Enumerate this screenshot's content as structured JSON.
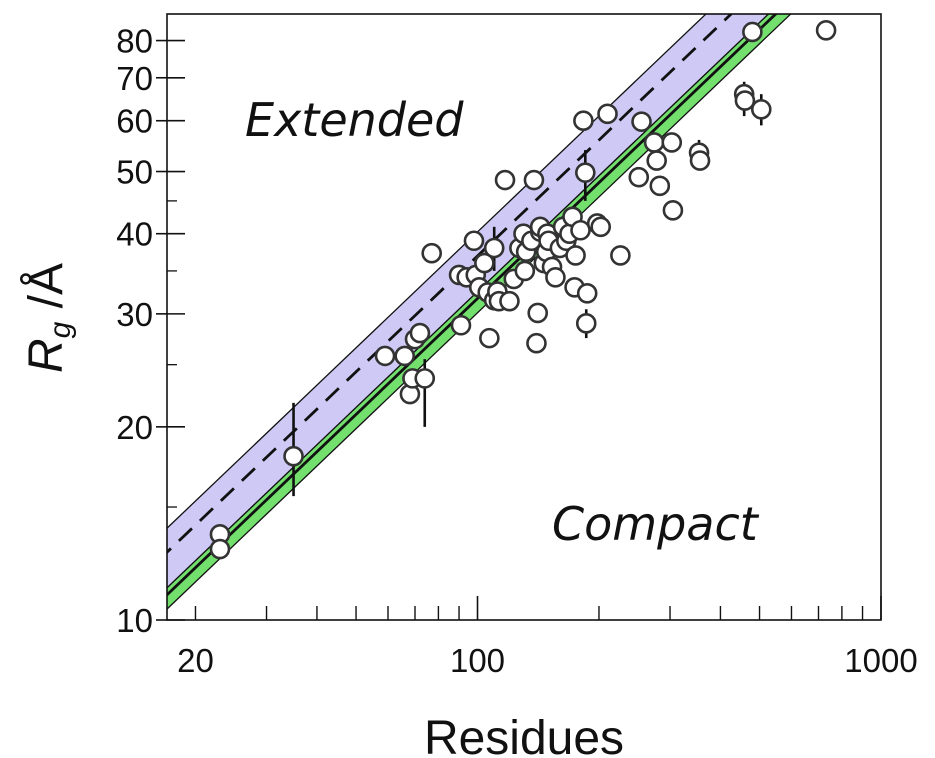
{
  "chart_data": {
    "type": "scatter",
    "x_scale": "log",
    "y_scale": "log",
    "xlabel": "Residues",
    "ylabel_main": "R",
    "ylabel_sub": "g",
    "ylabel_suffix": " /Å",
    "xlim": [
      17,
      1000
    ],
    "ylim": [
      10,
      88
    ],
    "x_tick_labels": [
      "20",
      "100",
      "1000"
    ],
    "y_tick_labels": [
      "10",
      "20",
      "30",
      "40",
      "50",
      "60",
      "70",
      "80"
    ],
    "annotations": {
      "extended": "Extended",
      "compact": "Compact"
    },
    "grid": false,
    "colors": {
      "extended_band": "#cfcaf5",
      "compact_band": "#73e06e",
      "marker_fill": "#ffffff",
      "marker_edge": "#333333"
    },
    "bands": [
      {
        "name": "extended",
        "center_prefactor": 2.33,
        "upper_prefactor": 2.54,
        "lower_prefactor": 2.05,
        "exponent": 0.6,
        "center_style": "dashed"
      },
      {
        "name": "compact",
        "center_prefactor": 2.0,
        "upper_prefactor": 2.05,
        "lower_prefactor": 1.9,
        "exponent": 0.6,
        "center_style": "solid"
      }
    ],
    "points": [
      [
        23,
        13.6
      ],
      [
        23,
        12.9
      ],
      [
        35,
        18
      ],
      [
        59,
        25.8
      ],
      [
        66,
        25.8
      ],
      [
        68,
        22.5
      ],
      [
        69,
        23.8
      ],
      [
        70,
        27.4
      ],
      [
        72,
        28
      ],
      [
        74,
        23.8
      ],
      [
        77,
        37.3
      ],
      [
        90,
        34.5
      ],
      [
        91,
        28.8
      ],
      [
        94,
        34.2
      ],
      [
        98,
        39
      ],
      [
        99,
        34.5
      ],
      [
        101,
        33
      ],
      [
        104,
        36
      ],
      [
        106,
        32.4
      ],
      [
        107,
        27.5
      ],
      [
        110,
        38
      ],
      [
        110,
        31.5
      ],
      [
        112,
        32.5
      ],
      [
        113,
        31.4
      ],
      [
        117,
        48.5
      ],
      [
        120,
        31.4
      ],
      [
        123,
        34
      ],
      [
        127,
        38
      ],
      [
        130,
        40
      ],
      [
        131,
        35
      ],
      [
        132,
        37.5
      ],
      [
        136,
        39
      ],
      [
        138,
        48.5
      ],
      [
        140,
        27
      ],
      [
        141,
        30.1
      ],
      [
        143,
        40.3
      ],
      [
        143,
        41
      ],
      [
        146,
        36
      ],
      [
        148,
        37.5
      ],
      [
        149,
        40
      ],
      [
        150,
        39
      ],
      [
        153,
        35.5
      ],
      [
        156,
        34.2
      ],
      [
        160,
        38
      ],
      [
        163,
        41
      ],
      [
        166,
        39
      ],
      [
        169,
        40
      ],
      [
        172,
        42.5
      ],
      [
        174,
        33
      ],
      [
        175,
        37
      ],
      [
        180,
        40.5
      ],
      [
        183,
        60
      ],
      [
        185,
        49.8
      ],
      [
        186,
        29
      ],
      [
        187,
        32.3
      ],
      [
        198,
        41.5
      ],
      [
        202,
        41
      ],
      [
        210,
        61.5
      ],
      [
        226,
        37
      ],
      [
        251,
        49
      ],
      [
        255,
        59.8
      ],
      [
        274,
        55.5
      ],
      [
        278,
        52
      ],
      [
        283,
        47.5
      ],
      [
        303,
        55.5
      ],
      [
        305,
        43.5
      ],
      [
        354,
        53.5
      ],
      [
        356,
        52
      ],
      [
        458,
        66
      ],
      [
        460,
        64.5
      ],
      [
        480,
        82.5
      ],
      [
        505,
        62.5
      ],
      [
        731,
        83
      ]
    ],
    "error_bars": [
      [
        35,
        15.6,
        21.8
      ],
      [
        74,
        20,
        25.5
      ],
      [
        110,
        35,
        41
      ],
      [
        185,
        45,
        54
      ],
      [
        186,
        27.5,
        30.5
      ],
      [
        354,
        51,
        56
      ],
      [
        458,
        61,
        69
      ],
      [
        505,
        59,
        66
      ]
    ]
  }
}
